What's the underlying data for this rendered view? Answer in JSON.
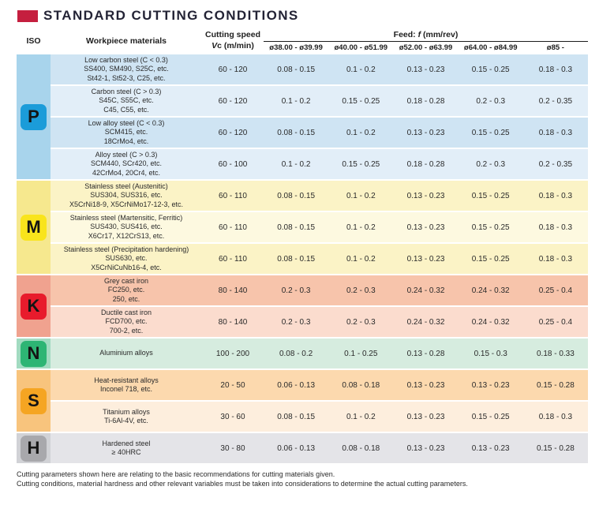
{
  "title": {
    "text": "STANDARD CUTTING CONDITIONS",
    "marker_color": "#c51f3f"
  },
  "header": {
    "iso": "ISO",
    "workpiece": "Workpiece materials",
    "cutting_speed_line1": "Cutting speed",
    "vc_italic": "V",
    "vc_rest": "c (m/min)",
    "feed_prefix": "Feed: ",
    "feed_italic": "f",
    "feed_suffix": " (mm/rev)",
    "diameters": [
      "ø38.00 - ø39.99",
      "ø40.00 - ø51.99",
      "ø52.00 - ø63.99",
      "ø64.00 - ø84.99",
      "ø85 -"
    ]
  },
  "groups": [
    {
      "letter": "P",
      "badge_color": "#1b9cd9",
      "strip_color": "#a8d4ec",
      "rows": [
        {
          "material": [
            "Low carbon steel (C < 0.3)",
            "SS400, SM490, S25C, etc.",
            "St42-1, St52-3, C25, etc."
          ],
          "vc": "60 - 120",
          "feeds": [
            "0.08 - 0.15",
            "0.1 - 0.2",
            "0.13 - 0.23",
            "0.15 - 0.25",
            "0.18 - 0.3"
          ],
          "bg": "#cfe4f3"
        },
        {
          "material": [
            "Carbon steel (C > 0.3)",
            "S45C, S55C, etc.",
            "C45, C55, etc."
          ],
          "vc": "60 - 120",
          "feeds": [
            "0.1 - 0.2",
            "0.15 - 0.25",
            "0.18 - 0.28",
            "0.2 - 0.3",
            "0.2 - 0.35"
          ],
          "bg": "#e2eef8"
        },
        {
          "material": [
            "Low alloy steel (C < 0.3)",
            "SCM415, etc.",
            "18CrMo4, etc."
          ],
          "vc": "60 - 120",
          "feeds": [
            "0.08 - 0.15",
            "0.1 - 0.2",
            "0.13 - 0.23",
            "0.15 - 0.25",
            "0.18 - 0.3"
          ],
          "bg": "#cfe4f3"
        },
        {
          "material": [
            "Alloy steel (C > 0.3)",
            "SCM440, SCr420, etc.",
            "42CrMo4, 20Cr4, etc."
          ],
          "vc": "60 - 100",
          "feeds": [
            "0.1 - 0.2",
            "0.15 - 0.25",
            "0.18 - 0.28",
            "0.2 - 0.3",
            "0.2 - 0.35"
          ],
          "bg": "#e2eef8"
        }
      ]
    },
    {
      "letter": "M",
      "badge_color": "#f9e41c",
      "strip_color": "#f6e88e",
      "rows": [
        {
          "material": [
            "Stainless steel (Austenitic)",
            "SUS304, SUS316, etc.",
            "X5CrNi18-9, X5CrNiMo17-12-3, etc."
          ],
          "vc": "60 - 110",
          "feeds": [
            "0.08 - 0.15",
            "0.1 - 0.2",
            "0.13 - 0.23",
            "0.15 - 0.25",
            "0.18 - 0.3"
          ],
          "bg": "#fbf3c6"
        },
        {
          "material": [
            "Stainless steel (Martensitic, Ferritic)",
            "SUS430, SUS416, etc.",
            "X6Cr17, X12CrS13, etc."
          ],
          "vc": "60 - 110",
          "feeds": [
            "0.08 - 0.15",
            "0.1 - 0.2",
            "0.13 - 0.23",
            "0.15 - 0.25",
            "0.18 - 0.3"
          ],
          "bg": "#fdf9e0"
        },
        {
          "material": [
            "Stainless steel (Precipitation hardening)",
            "SUS630, etc.",
            "X5CrNiCuNb16-4, etc."
          ],
          "vc": "60 - 110",
          "feeds": [
            "0.08 - 0.15",
            "0.1 - 0.2",
            "0.13 - 0.23",
            "0.15 - 0.25",
            "0.18 - 0.3"
          ],
          "bg": "#fbf3c6"
        }
      ]
    },
    {
      "letter": "K",
      "badge_color": "#e81b2c",
      "strip_color": "#f0a28f",
      "rows": [
        {
          "material": [
            "Grey cast iron",
            "FC250, etc.",
            "250, etc."
          ],
          "vc": "80 - 140",
          "feeds": [
            "0.2 - 0.3",
            "0.2 - 0.3",
            "0.24 - 0.32",
            "0.24 - 0.32",
            "0.25 - 0.4"
          ],
          "bg": "#f7c4ab"
        },
        {
          "material": [
            "Ductile cast iron",
            "FCD700, etc.",
            "700-2, etc."
          ],
          "vc": "80 - 140",
          "feeds": [
            "0.2 - 0.3",
            "0.2 - 0.3",
            "0.24 - 0.32",
            "0.24 - 0.32",
            "0.25 - 0.4"
          ],
          "bg": "#fbdcce"
        }
      ]
    },
    {
      "letter": "N",
      "badge_color": "#2db574",
      "strip_color": "#a2dbc1",
      "rows": [
        {
          "material": [
            "Aluminium alloys"
          ],
          "vc": "100 - 200",
          "feeds": [
            "0.08 - 0.2",
            "0.1 - 0.25",
            "0.13 - 0.28",
            "0.15 - 0.3",
            "0.18 - 0.33"
          ],
          "bg": "#d6ecdf"
        }
      ]
    },
    {
      "letter": "S",
      "badge_color": "#f5a522",
      "strip_color": "#f8c47d",
      "rows": [
        {
          "material": [
            "Heat-resistant alloys",
            "Inconel 718, etc."
          ],
          "vc": "20 - 50",
          "feeds": [
            "0.06 - 0.13",
            "0.08 - 0.18",
            "0.13 - 0.23",
            "0.13 - 0.23",
            "0.15 - 0.28"
          ],
          "bg": "#fcd9ae"
        },
        {
          "material": [
            "Titanium alloys",
            "Ti-6Al-4V, etc."
          ],
          "vc": "30 - 60",
          "feeds": [
            "0.08 - 0.15",
            "0.1 - 0.2",
            "0.13 - 0.23",
            "0.15 - 0.25",
            "0.18 - 0.3"
          ],
          "bg": "#fdeedd"
        }
      ]
    },
    {
      "letter": "H",
      "badge_color": "#a8a8ac",
      "strip_color": "#d1d2d6",
      "rows": [
        {
          "material": [
            "Hardened steel",
            "≥ 40HRC"
          ],
          "vc": "30 - 80",
          "feeds": [
            "0.06 - 0.13",
            "0.08 - 0.18",
            "0.13 - 0.23",
            "0.13 - 0.23",
            "0.15 - 0.28"
          ],
          "bg": "#e4e4e8"
        }
      ]
    }
  ],
  "footnotes": [
    "Cutting parameters shown here are relating to the basic recommendations for cutting materials given.",
    "Cutting conditions, material hardness and other relevant variables must be taken into considerations to determine the actual cutting parameters."
  ]
}
